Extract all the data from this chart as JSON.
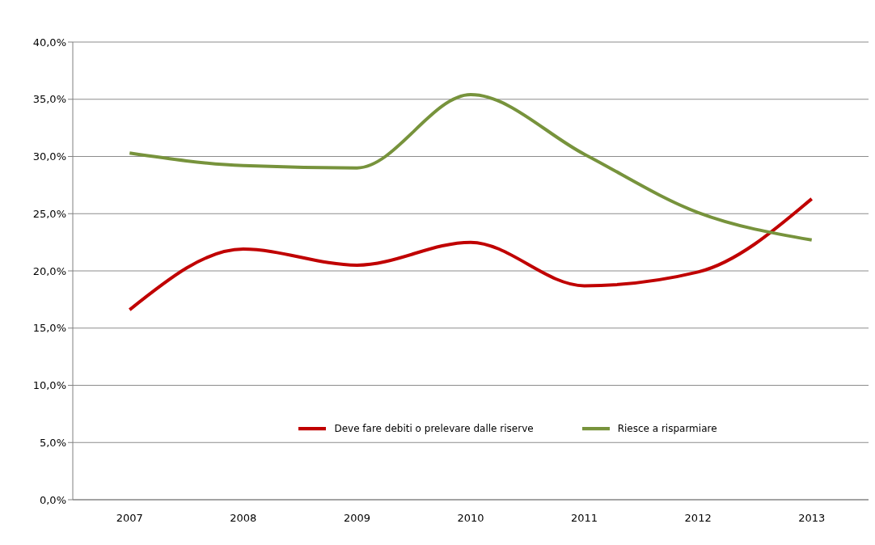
{
  "chart_data": {
    "type": "line",
    "categories": [
      "2007",
      "2008",
      "2009",
      "2010",
      "2011",
      "2012",
      "2013"
    ],
    "series": [
      {
        "name": "Deve fare debiti o prelevare dalle riserve",
        "color": "#c00000",
        "values": [
          16.6,
          21.9,
          20.5,
          22.5,
          18.7,
          19.9,
          26.3
        ]
      },
      {
        "name": "Riesce a risparmiare",
        "color": "#77933c",
        "values": [
          30.3,
          29.2,
          29.0,
          35.4,
          30.2,
          25.1,
          22.7
        ]
      }
    ],
    "ylim": [
      0,
      40
    ],
    "yticks": [
      {
        "value": 0,
        "label": "0,0%"
      },
      {
        "value": 5,
        "label": "5,0%"
      },
      {
        "value": 10,
        "label": "10,0%"
      },
      {
        "value": 15,
        "label": "15,0%"
      },
      {
        "value": 20,
        "label": "20,0%"
      },
      {
        "value": 25,
        "label": "25,0%"
      },
      {
        "value": 30,
        "label": "30,0%"
      },
      {
        "value": 35,
        "label": "35,0%"
      },
      {
        "value": 40,
        "label": "40,0%"
      }
    ],
    "grid": "y",
    "legend": "bottom",
    "marker": "none",
    "line_style": "solid"
  }
}
